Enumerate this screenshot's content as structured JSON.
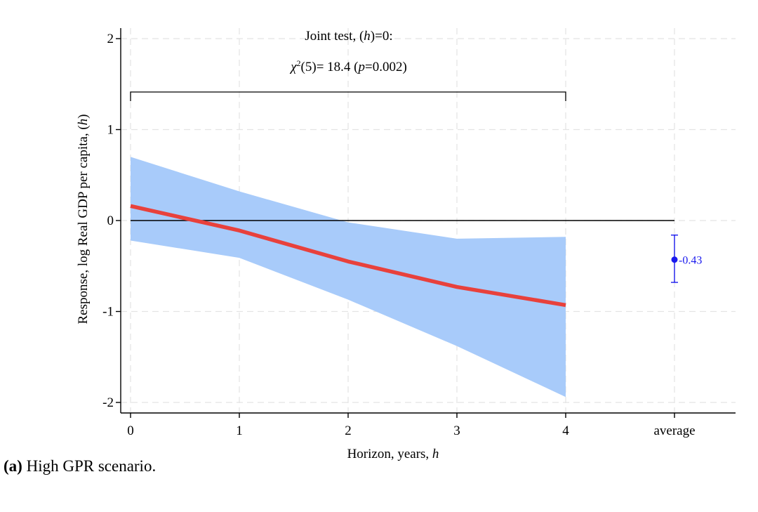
{
  "chart_data": {
    "type": "line",
    "categories": [
      "0",
      "1",
      "2",
      "3",
      "4",
      "average"
    ],
    "x": [
      0,
      1,
      2,
      3,
      4
    ],
    "series": [
      {
        "values": [
          0.16,
          -0.11,
          -0.45,
          -0.73,
          -0.93
        ],
        "ci_lower": [
          -0.22,
          -0.41,
          -0.87,
          -1.38,
          -1.94
        ],
        "ci_upper": [
          0.7,
          0.32,
          -0.02,
          -0.2,
          -0.18
        ],
        "color": "#e8413c",
        "band_color": "#a8cbfa"
      }
    ],
    "average": {
      "value": -0.43,
      "ci_lower": -0.68,
      "ci_upper": -0.16,
      "label": "-0.43",
      "color": "#1a1aee"
    },
    "ylabel_parts": [
      "Response, log Real GDP per capita, (",
      "h",
      ")"
    ],
    "xlabel_parts": [
      "Horizon, years, ",
      "h"
    ],
    "ylim": [
      -2,
      2
    ],
    "yticks": [
      -2,
      -1,
      0,
      1,
      2
    ],
    "ytick_labels": [
      "-2",
      "-1",
      "0",
      "1",
      "2"
    ],
    "grid": true,
    "annotation": {
      "line1_parts": [
        "Joint test, (",
        "h",
        ")=0:"
      ],
      "line2_parts": [
        "χ",
        "2",
        "(5)= 18.4 (",
        "p",
        "=0.002)"
      ],
      "bracket_from": 0,
      "bracket_to": 4
    }
  },
  "caption": {
    "label": "(a)",
    "text": " High GPR scenario."
  }
}
